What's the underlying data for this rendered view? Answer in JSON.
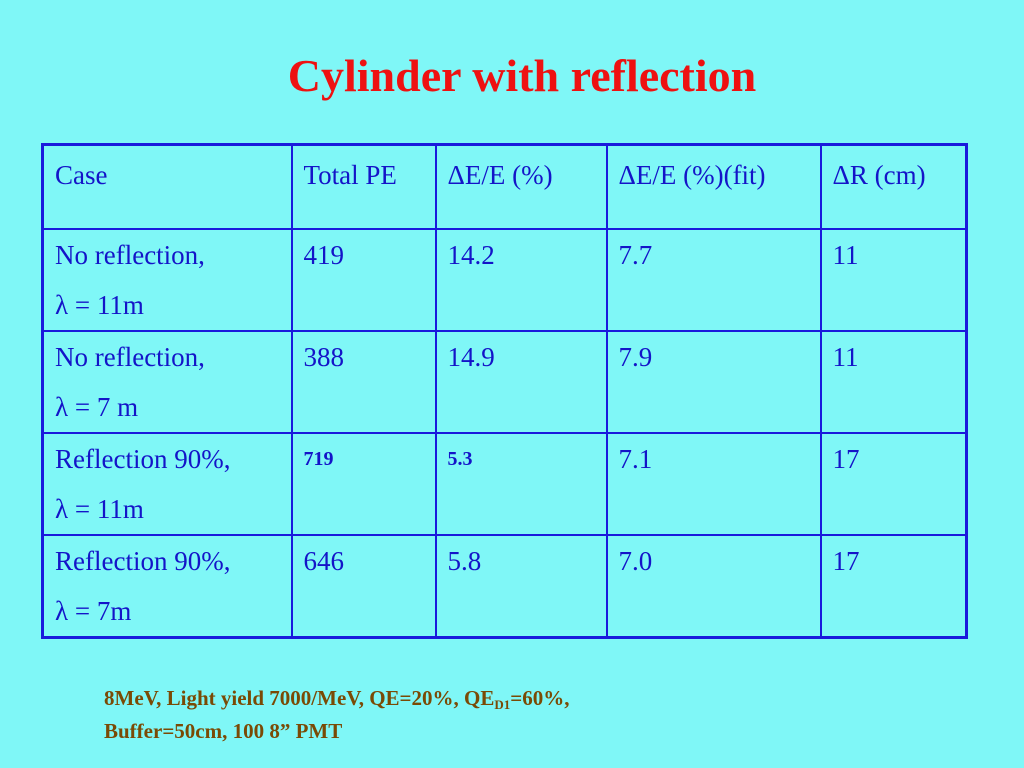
{
  "title": "Cylinder with reflection",
  "table": {
    "headers": [
      "Case",
      "Total PE",
      "ΔE/E (%)",
      "ΔE/E (%)(fit)",
      "ΔR (cm)"
    ],
    "rows": [
      {
        "case_line1": "No reflection,",
        "case_line2": "λ = 11m",
        "total_pe": "419",
        "de_e": "14.2",
        "de_e_fit": "7.7",
        "dr": "11"
      },
      {
        "case_line1": "No reflection,",
        "case_line2": "λ = 7 m",
        "total_pe": "388",
        "de_e": "14.9",
        "de_e_fit": "7.9",
        "dr": "11"
      },
      {
        "case_line1": "Reflection 90%,",
        "case_line2": "λ = 11m",
        "total_pe": "719",
        "de_e": "5.3",
        "de_e_fit": "7.1",
        "dr": "17"
      },
      {
        "case_line1": "Reflection 90%,",
        "case_line2": "λ = 7m",
        "total_pe": "646",
        "de_e": "5.8",
        "de_e_fit": "7.0",
        "dr": "17"
      }
    ]
  },
  "footnote": {
    "line1_before_sub": "8MeV, Light yield 7000/MeV, QE=20%, QE",
    "line1_sub": "D1",
    "line1_after_sub": "=60%,",
    "line2": "Buffer=50cm, 100 8” PMT"
  },
  "colors": {
    "background": "#7ff7f7",
    "title": "#ee1111",
    "table_text": "#1414c8",
    "table_border": "#1a1adc",
    "footnote": "#7a4a05"
  }
}
